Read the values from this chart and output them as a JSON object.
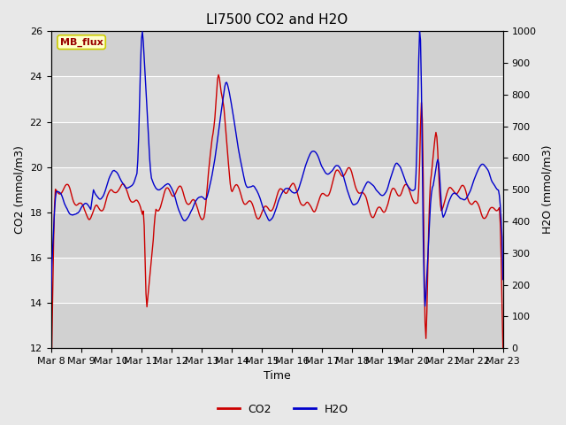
{
  "title": "LI7500 CO2 and H2O",
  "xlabel": "Time",
  "ylabel_left": "CO2 (mmol/m3)",
  "ylabel_right": "H2O (mmol/m3)",
  "ylim_left": [
    12,
    26
  ],
  "ylim_right": [
    0,
    1000
  ],
  "yticks_left": [
    12,
    14,
    16,
    18,
    20,
    22,
    24,
    26
  ],
  "yticks_right": [
    0,
    100,
    200,
    300,
    400,
    500,
    600,
    700,
    800,
    900,
    1000
  ],
  "xtick_labels": [
    "Mar 8",
    "Mar 9",
    "Mar 10",
    "Mar 11",
    "Mar 12",
    "Mar 13",
    "Mar 14",
    "Mar 15",
    "Mar 16",
    "Mar 17",
    "Mar 18",
    "Mar 19",
    "Mar 20",
    "Mar 21",
    "Mar 22",
    "Mar 23"
  ],
  "co2_color": "#cc0000",
  "h2o_color": "#0000cc",
  "background_color": "#e8e8e8",
  "plot_bg_color": "#dcdcdc",
  "grid_color": "#ffffff",
  "annotation_text": "MB_flux",
  "annotation_bg": "#ffffcc",
  "annotation_border": "#cccc00",
  "legend_co2": "CO2",
  "legend_h2o": "H2O",
  "title_fontsize": 11,
  "axis_fontsize": 9,
  "tick_fontsize": 8,
  "line_width": 1.0,
  "num_points": 500
}
